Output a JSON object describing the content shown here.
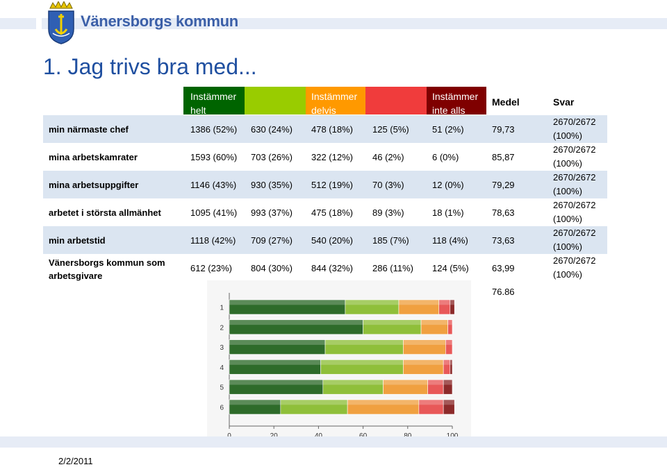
{
  "brand": {
    "name": "Vänersborgs kommun"
  },
  "title": "1. Jag trivs bra med...",
  "header": {
    "levels": [
      {
        "label": "Instämmer helt",
        "color": "#006400"
      },
      {
        "label": "",
        "color": "#99cc00"
      },
      {
        "label": "Instämmer delvis",
        "color": "#ff9900"
      },
      {
        "label": "",
        "color": "#f03c3c"
      },
      {
        "label": "Instämmer inte alls",
        "color": "#7f0000"
      }
    ],
    "medel": "Medel",
    "svar": "Svar"
  },
  "rows": [
    {
      "label": "min närmaste chef",
      "cells": [
        "1386 (52%)",
        "630 (24%)",
        "478 (18%)",
        "125 (5%)",
        "51 (2%)"
      ],
      "medel": "79,73",
      "svar": "2670/2672",
      "svar_pct": "(100%)"
    },
    {
      "label": "mina arbetskamrater",
      "cells": [
        "1593 (60%)",
        "703 (26%)",
        "322 (12%)",
        "46 (2%)",
        "6 (0%)"
      ],
      "medel": "85,87",
      "svar": "2670/2672",
      "svar_pct": "(100%)"
    },
    {
      "label": "mina arbetsuppgifter",
      "cells": [
        "1146 (43%)",
        "930 (35%)",
        "512 (19%)",
        "70 (3%)",
        "12 (0%)"
      ],
      "medel": "79,29",
      "svar": "2670/2672",
      "svar_pct": "(100%)"
    },
    {
      "label": "arbetet i största allmänhet",
      "cells": [
        "1095 (41%)",
        "993 (37%)",
        "475 (18%)",
        "89 (3%)",
        "18 (1%)"
      ],
      "medel": "78,63",
      "svar": "2670/2672",
      "svar_pct": "(100%)"
    },
    {
      "label": "min arbetstid",
      "cells": [
        "1118 (42%)",
        "709 (27%)",
        "540 (20%)",
        "185 (7%)",
        "118 (4%)"
      ],
      "medel": "73,63",
      "svar": "2670/2672",
      "svar_pct": "(100%)"
    },
    {
      "label": "Vänersborgs kommun som arbetsgivare",
      "cells": [
        "612 (23%)",
        "804 (30%)",
        "844 (32%)",
        "286 (11%)",
        "124 (5%)"
      ],
      "medel": "63,99",
      "svar": "2670/2672",
      "svar_pct": "(100%)"
    }
  ],
  "medel_total": "76.86",
  "date": "2/2/2011",
  "chart_data": {
    "type": "bar",
    "orientation": "horizontal",
    "stacked": true,
    "percent": true,
    "categories": [
      "1",
      "2",
      "3",
      "4",
      "5",
      "6"
    ],
    "series": [
      {
        "values": [
          52,
          60,
          43,
          41,
          42,
          23
        ],
        "color": "#2e6b2a"
      },
      {
        "values": [
          24,
          26,
          35,
          37,
          27,
          30
        ],
        "color": "#8fbf3a"
      },
      {
        "values": [
          18,
          12,
          19,
          18,
          20,
          32
        ],
        "color": "#f0a040"
      },
      {
        "values": [
          5,
          2,
          3,
          3,
          7,
          11
        ],
        "color": "#e85858"
      },
      {
        "values": [
          2,
          0,
          0,
          1,
          4,
          5
        ],
        "color": "#8c2a2a"
      }
    ],
    "xticks": [
      "0",
      "20",
      "40",
      "60",
      "80",
      "100"
    ],
    "xlim": [
      0,
      100
    ],
    "grid": false,
    "legend": "none"
  }
}
